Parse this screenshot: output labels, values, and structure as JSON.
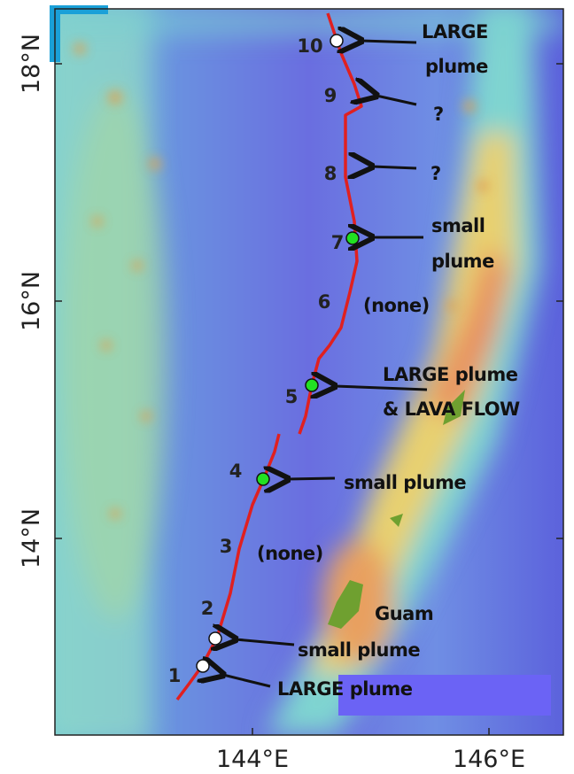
{
  "map": {
    "lat_labels": [
      "18°N",
      "16°N",
      "14°N"
    ],
    "lon_labels": [
      "144°E",
      "146°E"
    ],
    "sites": [
      "1",
      "2",
      "3",
      "4",
      "5",
      "6",
      "7",
      "8",
      "9",
      "10"
    ],
    "annotations": {
      "site_10": [
        "LARGE",
        "plume"
      ],
      "site_9": [
        "?"
      ],
      "site_8": [
        "?"
      ],
      "site_7": [
        "small",
        "plume"
      ],
      "site_6": [
        "(none)"
      ],
      "site_5": [
        "LARGE plume",
        "& LAVA FLOW"
      ],
      "site_4": [
        "small plume"
      ],
      "site_3": [
        "(none)"
      ],
      "site_2": [
        "small plume"
      ],
      "site_1": [
        "LARGE plume"
      ]
    },
    "place": "Guam"
  }
}
